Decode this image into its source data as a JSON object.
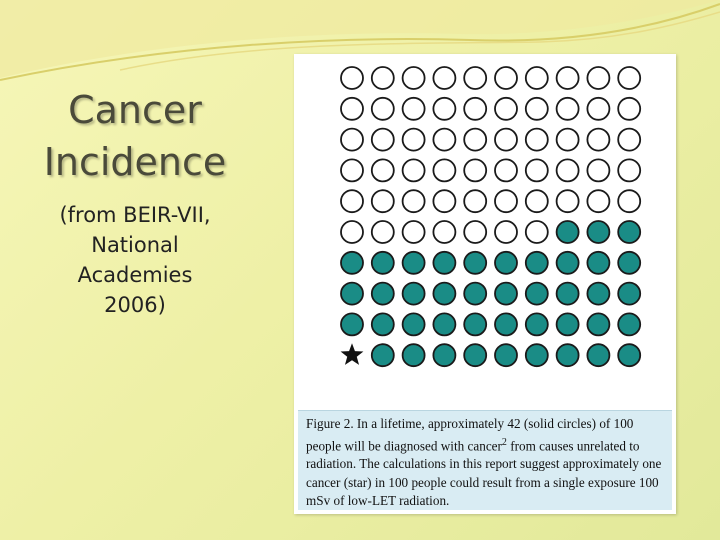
{
  "slide": {
    "title_lines": [
      "Cancer",
      "Incidence"
    ],
    "subtitle_lines": [
      "(from BEIR-VII,",
      "National",
      "Academies",
      "2006)"
    ]
  },
  "figure": {
    "grid": {
      "rows": 10,
      "cols": 10,
      "total_people": 100,
      "solid_count": 42,
      "star_count": 1,
      "empty_count": 57
    },
    "colors": {
      "solid_fill": "#1a8c86",
      "outline": "#1a1a1a",
      "caption_bg": "#d9ecf3"
    },
    "legend_symbols": {
      "solid": "solid-circle",
      "empty": "open-circle",
      "star": "star"
    },
    "caption": {
      "before_sup": "Figure 2. In a lifetime, approximately 42 (solid circles) of 100 people will be diagnosed with cancer",
      "sup": "2",
      "after_sup": " from causes unrelated to radiation. The calculations in this report suggest approximately one cancer (star) in 100 people could result from a single exposure 100 mSv of low-LET radiation."
    }
  }
}
